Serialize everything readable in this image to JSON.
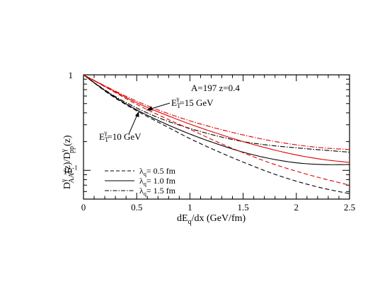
{
  "chart_data": {
    "type": "line",
    "title": "",
    "xlabel": "dE_q/dx (GeV/fm)",
    "ylabel": "D^γ_AA(z)/D^γ_pp(z)",
    "xlim": [
      0,
      2.5
    ],
    "ylim": [
      0.05,
      1
    ],
    "yscale": "log",
    "grid": false,
    "x_ticks": [
      "0",
      "0.5",
      "1",
      "1.5",
      "2",
      "2.5"
    ],
    "y_ticks": [
      "10^-1",
      "1"
    ],
    "annotations": {
      "main": "A=197  z=0.4",
      "upper": "E_T^γ=15 GeV",
      "lower": "E_T^γ=10 GeV"
    },
    "legend_position": "bottom-left",
    "colors": {
      "et10": "#000000",
      "et15": "#e00000"
    },
    "x": [
      0,
      0.25,
      0.5,
      0.75,
      1.0,
      1.25,
      1.5,
      1.75,
      2.0,
      2.25,
      2.5
    ],
    "series": [
      {
        "name": "λ_q = 0.5 fm",
        "group": "E_T=10 GeV",
        "dash": "dash",
        "values": [
          1.0,
          0.62,
          0.42,
          0.3,
          0.215,
          0.16,
          0.122,
          0.095,
          0.077,
          0.065,
          0.057
        ]
      },
      {
        "name": "λ_q = 1.0 fm",
        "group": "E_T=10 GeV",
        "dash": "solid",
        "values": [
          1.0,
          0.63,
          0.43,
          0.315,
          0.24,
          0.19,
          0.155,
          0.133,
          0.12,
          0.115,
          0.115
        ]
      },
      {
        "name": "λ_q = 1.5 fm",
        "group": "E_T=10 GeV",
        "dash": "dashdot",
        "values": [
          1.0,
          0.64,
          0.45,
          0.34,
          0.275,
          0.23,
          0.2,
          0.183,
          0.172,
          0.163,
          0.155
        ]
      },
      {
        "name": "λ_q = 0.5 fm",
        "group": "E_T=15 GeV",
        "dash": "dash",
        "values": [
          1.0,
          0.7,
          0.49,
          0.36,
          0.27,
          0.2,
          0.153,
          0.12,
          0.098,
          0.082,
          0.07
        ]
      },
      {
        "name": "λ_q = 1.0 fm",
        "group": "E_T=15 GeV",
        "dash": "solid",
        "values": [
          1.0,
          0.71,
          0.51,
          0.39,
          0.305,
          0.245,
          0.2,
          0.168,
          0.145,
          0.13,
          0.121
        ]
      },
      {
        "name": "λ_q = 1.5 fm",
        "group": "E_T=15 GeV",
        "dash": "dashdot",
        "values": [
          1.0,
          0.72,
          0.53,
          0.41,
          0.33,
          0.275,
          0.235,
          0.205,
          0.185,
          0.172,
          0.165
        ]
      }
    ],
    "legend": [
      {
        "label": "λ_q= 0.5 fm",
        "dash": "dash"
      },
      {
        "label": "λ_q= 1.0 fm",
        "dash": "solid"
      },
      {
        "label": "λ_q= 1.5 fm",
        "dash": "dashdot"
      }
    ]
  }
}
